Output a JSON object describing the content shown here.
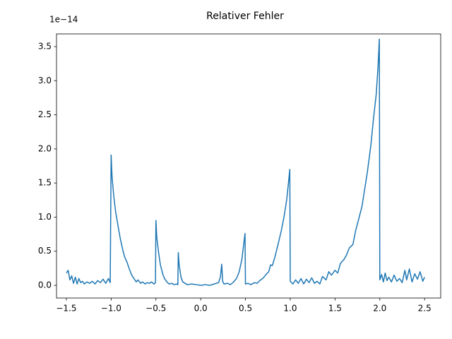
{
  "chart_data": {
    "type": "line",
    "title": "Relativer Fehler",
    "y_offset_label": "1e−14",
    "color": "#1f77b4",
    "x": [
      -1.5,
      -1.48,
      -1.46,
      -1.44,
      -1.42,
      -1.4,
      -1.38,
      -1.36,
      -1.34,
      -1.32,
      -1.3,
      -1.27,
      -1.24,
      -1.21,
      -1.18,
      -1.15,
      -1.12,
      -1.09,
      -1.06,
      -1.03,
      -1.01,
      -1.0,
      -0.99,
      -0.97,
      -0.95,
      -0.92,
      -0.9,
      -0.87,
      -0.85,
      -0.82,
      -0.8,
      -0.77,
      -0.75,
      -0.72,
      -0.7,
      -0.67,
      -0.65,
      -0.62,
      -0.6,
      -0.57,
      -0.55,
      -0.52,
      -0.505,
      -0.5,
      -0.49,
      -0.47,
      -0.45,
      -0.42,
      -0.4,
      -0.37,
      -0.35,
      -0.32,
      -0.3,
      -0.27,
      -0.255,
      -0.25,
      -0.24,
      -0.22,
      -0.2,
      -0.15,
      -0.1,
      -0.05,
      0.0,
      0.05,
      0.1,
      0.15,
      0.2,
      0.22,
      0.235,
      0.245,
      0.26,
      0.3,
      0.33,
      0.36,
      0.4,
      0.43,
      0.46,
      0.48,
      0.495,
      0.5,
      0.53,
      0.56,
      0.6,
      0.63,
      0.66,
      0.7,
      0.73,
      0.76,
      0.78,
      0.8,
      0.83,
      0.86,
      0.9,
      0.93,
      0.96,
      0.98,
      0.995,
      1.0,
      1.03,
      1.06,
      1.09,
      1.12,
      1.15,
      1.18,
      1.21,
      1.24,
      1.27,
      1.3,
      1.33,
      1.36,
      1.4,
      1.43,
      1.46,
      1.5,
      1.53,
      1.56,
      1.6,
      1.63,
      1.66,
      1.7,
      1.73,
      1.76,
      1.8,
      1.83,
      1.86,
      1.9,
      1.93,
      1.96,
      1.98,
      1.995,
      2.0,
      2.02,
      2.04,
      2.06,
      2.08,
      2.1,
      2.13,
      2.16,
      2.19,
      2.22,
      2.25,
      2.28,
      2.3,
      2.33,
      2.36,
      2.39,
      2.42,
      2.45,
      2.48,
      2.5
    ],
    "values": [
      0.18,
      0.22,
      0.08,
      0.14,
      0.03,
      0.12,
      0.02,
      0.1,
      0.04,
      0.06,
      0.02,
      0.05,
      0.03,
      0.06,
      0.02,
      0.07,
      0.04,
      0.09,
      0.03,
      0.1,
      0.04,
      1.91,
      1.6,
      1.3,
      1.08,
      0.85,
      0.7,
      0.52,
      0.42,
      0.33,
      0.25,
      0.15,
      0.11,
      0.05,
      0.08,
      0.03,
      0.05,
      0.02,
      0.04,
      0.03,
      0.05,
      0.02,
      0.04,
      0.95,
      0.7,
      0.48,
      0.3,
      0.15,
      0.09,
      0.04,
      0.02,
      0.03,
      0.01,
      0.02,
      0.01,
      0.48,
      0.3,
      0.12,
      0.05,
      0.01,
      0.02,
      0.01,
      0.0,
      0.01,
      0.0,
      0.02,
      0.04,
      0.12,
      0.31,
      0.06,
      0.02,
      0.03,
      0.01,
      0.04,
      0.1,
      0.2,
      0.38,
      0.6,
      0.76,
      0.02,
      0.03,
      0.01,
      0.04,
      0.03,
      0.07,
      0.11,
      0.16,
      0.2,
      0.3,
      0.29,
      0.42,
      0.58,
      0.8,
      1.0,
      1.25,
      1.5,
      1.7,
      0.06,
      0.02,
      0.08,
      0.03,
      0.1,
      0.02,
      0.09,
      0.04,
      0.11,
      0.03,
      0.06,
      0.02,
      0.13,
      0.08,
      0.2,
      0.15,
      0.22,
      0.18,
      0.32,
      0.38,
      0.45,
      0.55,
      0.6,
      0.8,
      0.95,
      1.15,
      1.4,
      1.65,
      2.05,
      2.45,
      2.8,
      3.2,
      3.61,
      0.08,
      0.16,
      0.05,
      0.18,
      0.07,
      0.12,
      0.05,
      0.15,
      0.06,
      0.1,
      0.04,
      0.22,
      0.08,
      0.24,
      0.05,
      0.17,
      0.09,
      0.2,
      0.06,
      0.12
    ],
    "xlim": [
      -1.61,
      2.68
    ],
    "ylim": [
      -0.186,
      3.686
    ],
    "xticks": [
      {
        "value": -1.5,
        "label": "−1.5"
      },
      {
        "value": -1.0,
        "label": "−1.0"
      },
      {
        "value": -0.5,
        "label": "−0.5"
      },
      {
        "value": 0,
        "label": "0.0"
      },
      0.5,
      {
        "value": 1,
        "label": "1.0"
      },
      1.5,
      {
        "value": 2,
        "label": "2.0"
      },
      2.5
    ],
    "yticks": [
      {
        "value": 0,
        "label": "0.0"
      },
      0.5,
      {
        "value": 1,
        "label": "1.0"
      },
      1.5,
      {
        "value": 2,
        "label": "2.0"
      },
      2.5,
      {
        "value": 3,
        "label": "3.0"
      },
      3.5
    ],
    "grid": false
  }
}
